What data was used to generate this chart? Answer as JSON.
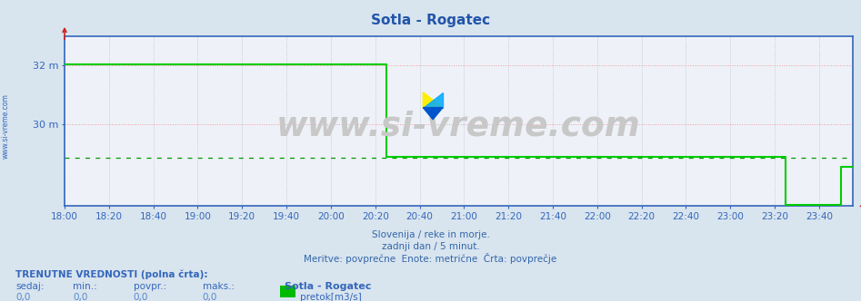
{
  "title": "Sotla - Rogatec",
  "title_color": "#2255aa",
  "bg_color": "#d8e4ee",
  "plot_bg_color": "#eef2f8",
  "axis_color": "#3366bb",
  "xlabel_texts": [
    "18:00",
    "18:20",
    "18:40",
    "19:00",
    "19:20",
    "19:40",
    "20:00",
    "20:20",
    "20:40",
    "21:00",
    "21:20",
    "21:40",
    "22:00",
    "22:20",
    "22:40",
    "23:00",
    "23:20",
    "23:40"
  ],
  "ytick_labels": [
    "32 m",
    "30 m"
  ],
  "ytick_values": [
    32.0,
    30.0
  ],
  "ymin": 27.2,
  "ymax": 33.0,
  "line_color": "#00cc00",
  "avg_line_y": 28.85,
  "avg_line_color": "#009900",
  "grid_red_color": "#ee9999",
  "grid_gray_color": "#bbbbcc",
  "footer_lines": [
    "Slovenija / reke in morje.",
    "zadnji dan / 5 minut.",
    "Meritve: povprečne  Enote: metrične  Črta: povprečje"
  ],
  "footer_color": "#3366aa",
  "bottom_label1": "TRENUTNE VREDNOSTI (polna črta):",
  "bottom_cols": [
    "sedaj:",
    "min.:",
    "povpr.:",
    "maks.:"
  ],
  "bottom_vals": [
    "0,0",
    "0,0",
    "0,0",
    "0,0"
  ],
  "bottom_station": "Sotla - Rogatec",
  "bottom_unit": "pretok[m3/s]",
  "legend_color": "#00bb00",
  "watermark_text": "www.si-vreme.com",
  "watermark_color": "#c8c8c8",
  "sivreme_yellow": "#ffee00",
  "sivreme_blue": "#0055cc",
  "sivreme_cyan": "#00aaff"
}
